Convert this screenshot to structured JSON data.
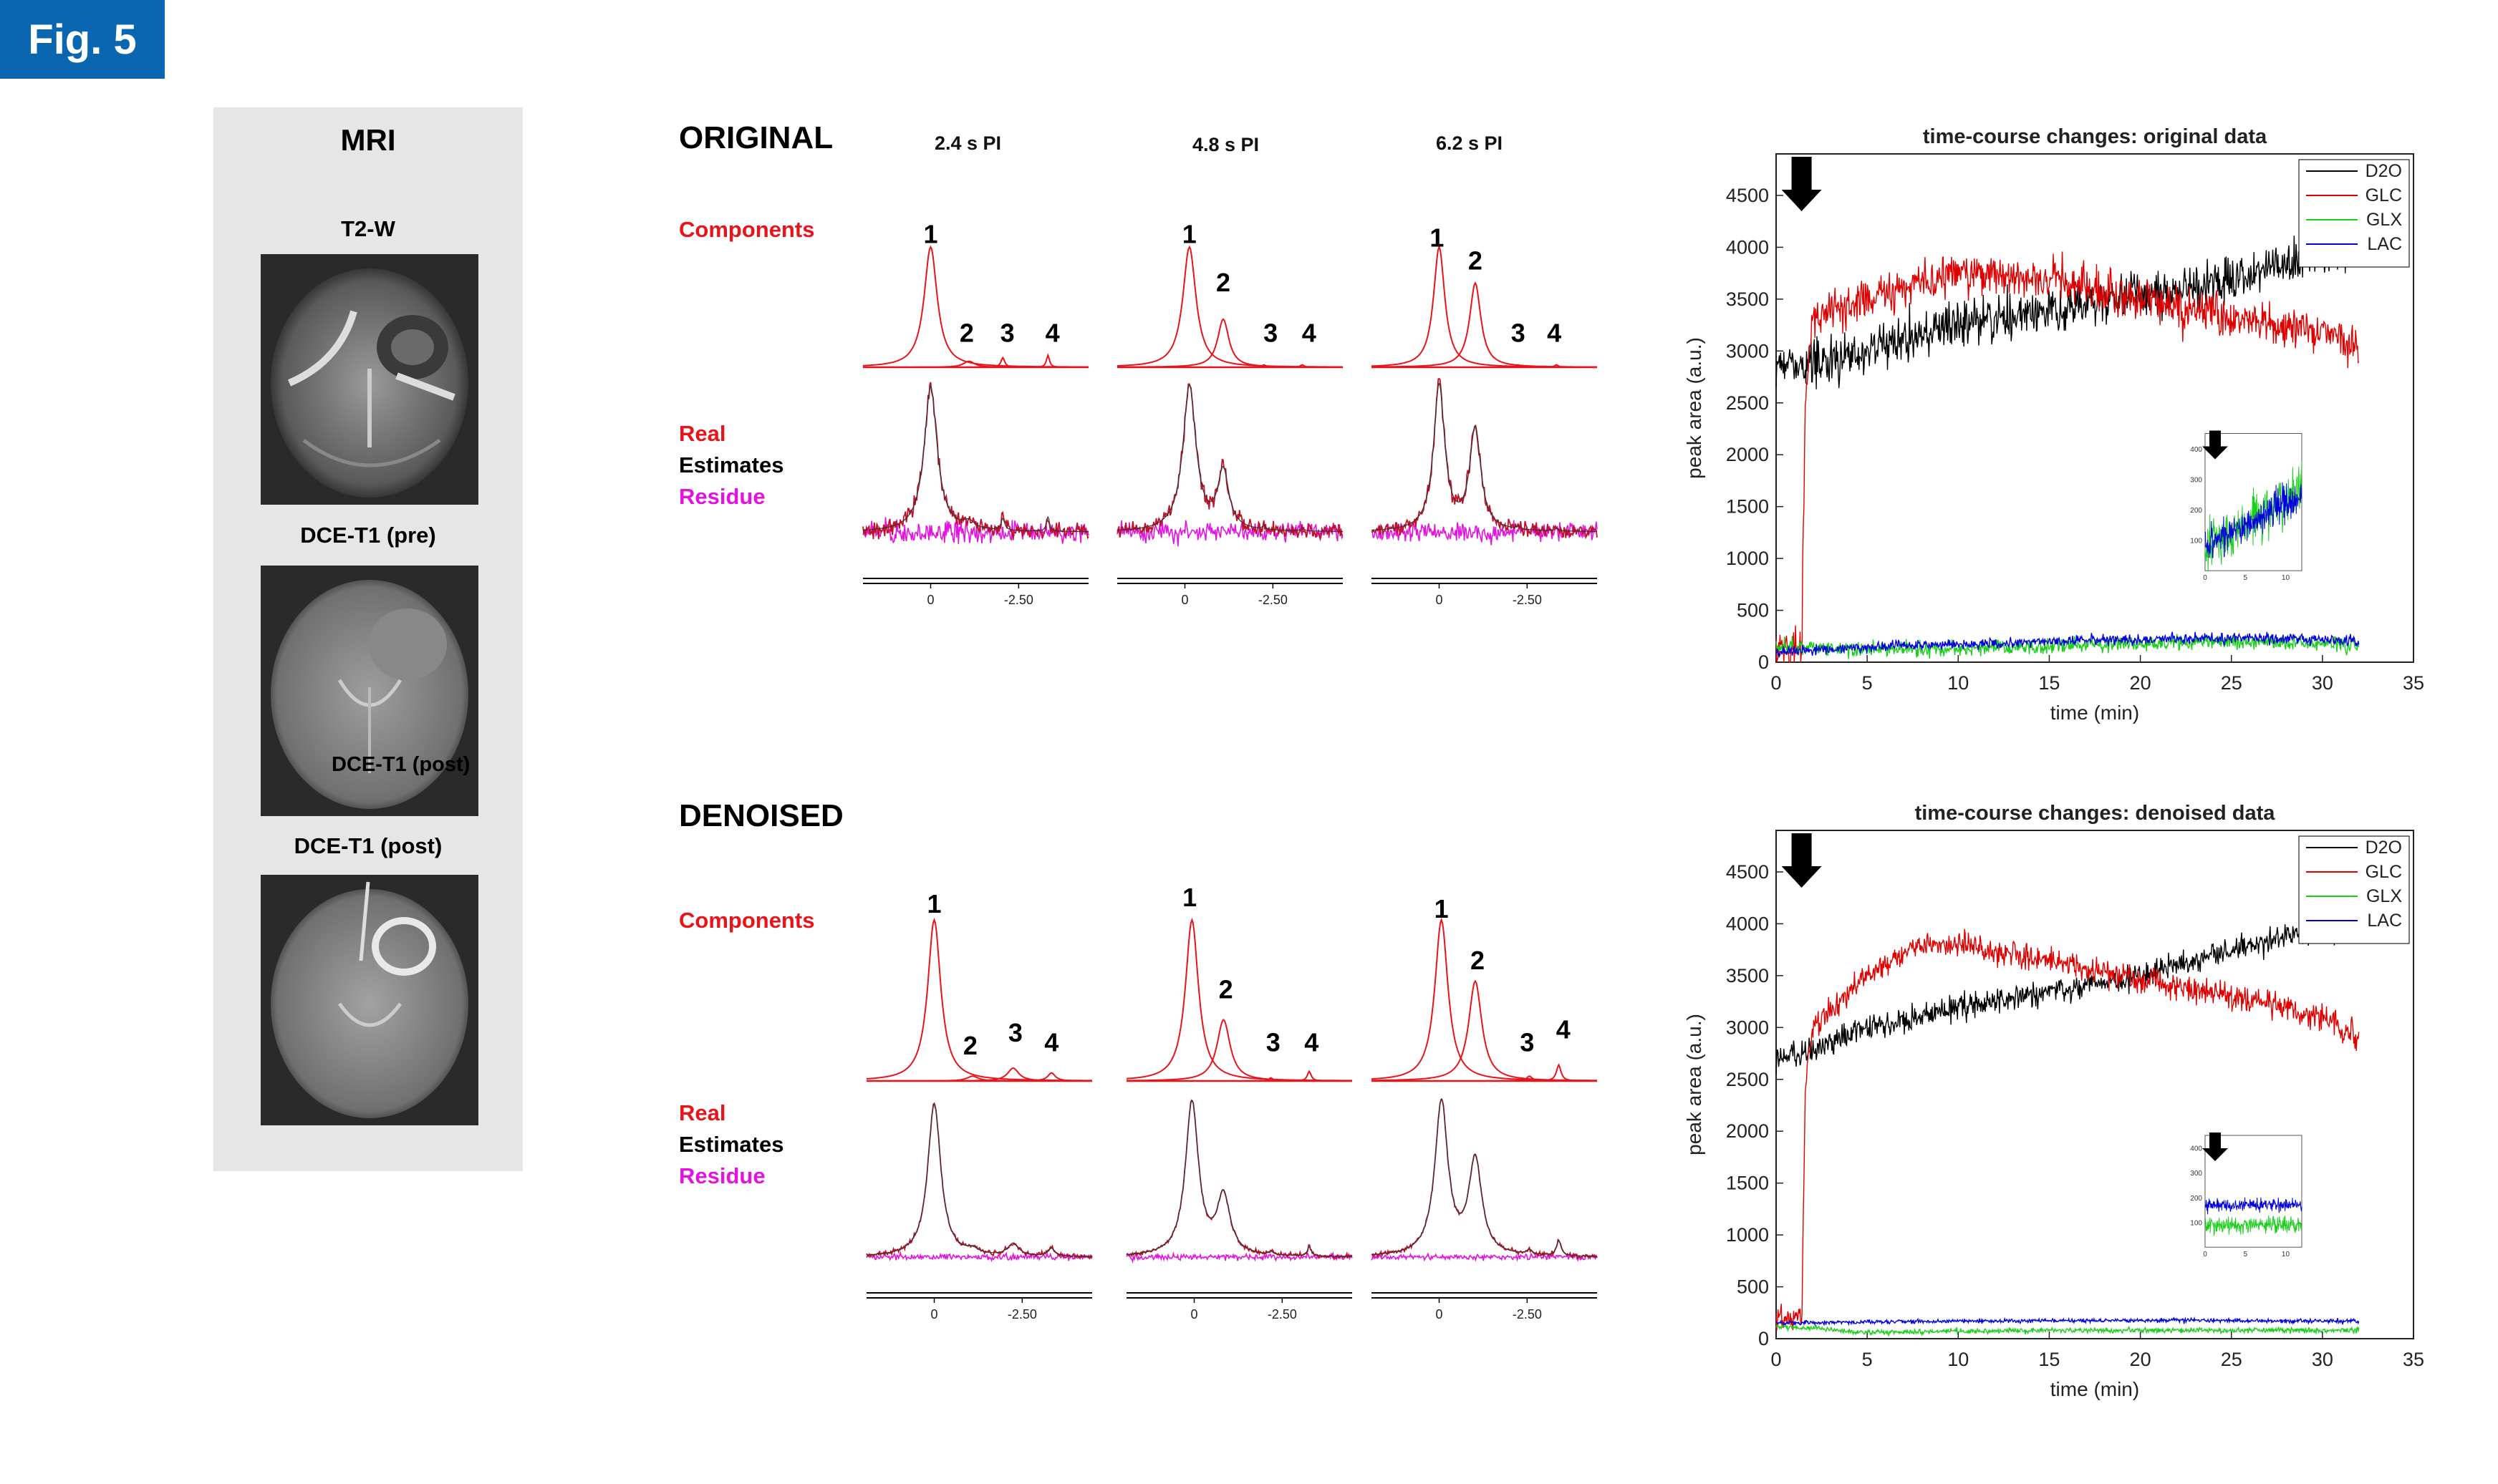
{
  "figure_label": "Fig. 5",
  "mri": {
    "title": "MRI",
    "labels": [
      "T2-W",
      "DCE-T1 (pre)",
      "DCE-T1 (post)"
    ],
    "overlay_label": "DCE-T1 (post)"
  },
  "original": {
    "heading": "ORIGINAL",
    "timepoints": [
      "2.4 s PI",
      "4.8 s PI",
      "6.2 s PI"
    ],
    "components_label": "Components",
    "legend": {
      "real": "Real",
      "estimates": "Estimates",
      "residue": "Residue"
    }
  },
  "denoised": {
    "heading": "DENOISED",
    "components_label": "Components",
    "legend": {
      "real": "Real",
      "estimates": "Estimates",
      "residue": "Residue"
    }
  },
  "peak_numbers": [
    "1",
    "2",
    "3",
    "4"
  ],
  "axis_ticks": [
    "0",
    "-2.50"
  ],
  "colors": {
    "D2O": "#000000",
    "GLC": "#e00000",
    "GLX": "#19d019",
    "LAC": "#0000e0",
    "red_label": "#e8141a",
    "magenta": "#e312e0",
    "tag": "#0a66b0"
  },
  "chart_data": [
    {
      "type": "line",
      "title": "time-course changes: original data",
      "xlabel": "time (min)",
      "ylabel": "peak area (a.u.)",
      "xlim": [
        0,
        35
      ],
      "ylim": [
        0,
        4900
      ],
      "xticks": [
        "0",
        "5",
        "10",
        "15",
        "20",
        "25",
        "30",
        "35"
      ],
      "yticks": [
        "0",
        "500",
        "1000",
        "1500",
        "2000",
        "2500",
        "3000",
        "3500",
        "4000",
        "4500"
      ],
      "legend": [
        "D2O",
        "GLC",
        "GLX",
        "LAC"
      ],
      "legend_position": "top-right",
      "series": [
        {
          "name": "D2O",
          "x": [
            0,
            1.5,
            5,
            10,
            15,
            20,
            25,
            30,
            32
          ],
          "values": [
            2900,
            2850,
            3000,
            3250,
            3400,
            3500,
            3700,
            3950,
            4000
          ],
          "noise": 220
        },
        {
          "name": "GLC",
          "x": [
            0,
            1.4,
            1.6,
            2,
            5,
            10,
            15,
            20,
            25,
            30,
            32
          ],
          "values": [
            100,
            100,
            2500,
            3300,
            3500,
            3750,
            3700,
            3500,
            3300,
            3200,
            3000
          ],
          "noise": 200
        },
        {
          "name": "GLX",
          "x": [
            0,
            5,
            10,
            15,
            20,
            25,
            30,
            32
          ],
          "values": [
            150,
            120,
            130,
            150,
            180,
            200,
            180,
            160
          ],
          "noise": 70
        },
        {
          "name": "LAC",
          "x": [
            0,
            5,
            10,
            15,
            20,
            25,
            30,
            32
          ],
          "values": [
            100,
            150,
            170,
            200,
            220,
            230,
            220,
            200
          ],
          "noise": 50
        }
      ],
      "inset": {
        "yticks": [
          "100",
          "200",
          "300",
          "400"
        ],
        "xticks": [
          "0",
          "5",
          "10"
        ],
        "ylim": [
          0,
          450
        ],
        "xlim": [
          0,
          12
        ]
      }
    },
    {
      "type": "line",
      "title": "time-course changes: denoised data",
      "xlabel": "time (min)",
      "ylabel": "peak area (a.u.)",
      "xlim": [
        0,
        35
      ],
      "ylim": [
        0,
        4900
      ],
      "xticks": [
        "0",
        "5",
        "10",
        "15",
        "20",
        "25",
        "30",
        "35"
      ],
      "yticks": [
        "0",
        "500",
        "1000",
        "1500",
        "2000",
        "2500",
        "3000",
        "3500",
        "4000",
        "4500"
      ],
      "legend": [
        "D2O",
        "GLC",
        "GLX",
        "LAC"
      ],
      "legend_position": "top-right",
      "series": [
        {
          "name": "D2O",
          "x": [
            0,
            1.5,
            5,
            10,
            15,
            20,
            25,
            30,
            32
          ],
          "values": [
            2700,
            2750,
            3000,
            3200,
            3350,
            3500,
            3750,
            3950,
            4000
          ],
          "noise": 120
        },
        {
          "name": "GLC",
          "x": [
            0,
            1.4,
            1.6,
            2,
            5,
            8,
            10,
            15,
            20,
            25,
            30,
            32
          ],
          "values": [
            200,
            200,
            2400,
            3000,
            3500,
            3800,
            3800,
            3650,
            3450,
            3300,
            3100,
            2900
          ],
          "noise": 120
        },
        {
          "name": "GLX",
          "x": [
            0,
            5,
            10,
            15,
            20,
            25,
            30,
            32
          ],
          "values": [
            120,
            60,
            70,
            80,
            80,
            80,
            80,
            80
          ],
          "noise": 25
        },
        {
          "name": "LAC",
          "x": [
            0,
            5,
            10,
            15,
            20,
            25,
            30,
            32
          ],
          "values": [
            150,
            160,
            170,
            175,
            175,
            175,
            170,
            170
          ],
          "noise": 20
        }
      ],
      "inset": {
        "yticks": [
          "100",
          "200",
          "300",
          "400"
        ],
        "xticks": [
          "0",
          "5",
          "10"
        ],
        "ylim": [
          0,
          450
        ],
        "xlim": [
          0,
          12
        ]
      }
    }
  ]
}
